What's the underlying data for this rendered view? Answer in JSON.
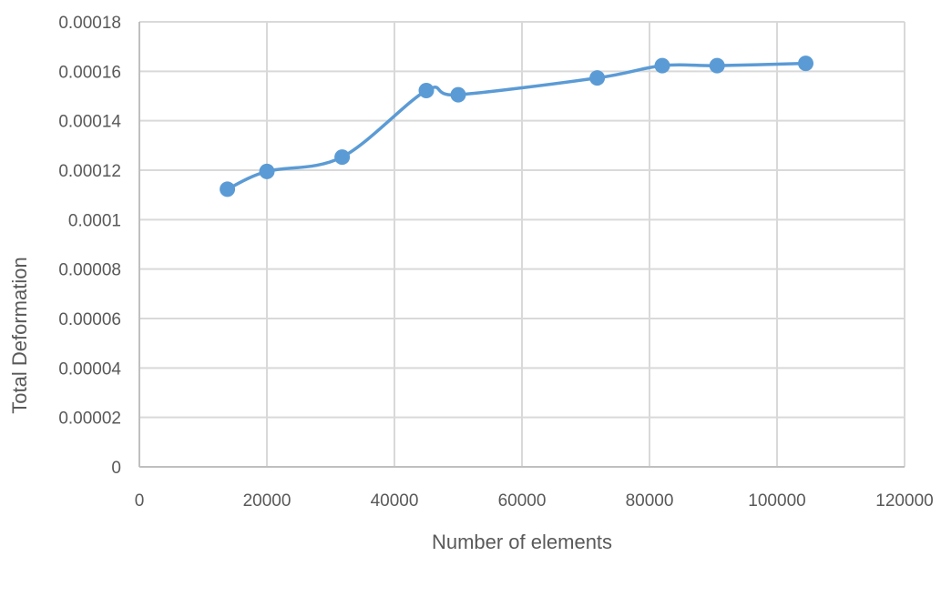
{
  "chart_data": {
    "type": "line",
    "title": "",
    "xlabel": "Number of elements",
    "ylabel": "Total Deformation",
    "xlim": [
      0,
      120000
    ],
    "ylim": [
      0,
      0.00018
    ],
    "x_ticks": [
      "0",
      "20000",
      "40000",
      "60000",
      "80000",
      "100000",
      "120000"
    ],
    "y_ticks": [
      "0",
      "0.00002",
      "0.00004",
      "0.00006",
      "0.00008",
      "0.0001",
      "0.00012",
      "0.00014",
      "0.00016",
      "0.00018"
    ],
    "grid": true,
    "legend": "none",
    "smooth": true,
    "series": [
      {
        "color": "#5b9bd5",
        "points": [
          {
            "x": 13800,
            "y": 0.0001123
          },
          {
            "x": 20000,
            "y": 0.0001195
          },
          {
            "x": 31800,
            "y": 0.0001253
          },
          {
            "x": 45000,
            "y": 0.0001522
          },
          {
            "x": 50000,
            "y": 0.0001505
          },
          {
            "x": 71800,
            "y": 0.0001573
          },
          {
            "x": 82000,
            "y": 0.0001623
          },
          {
            "x": 90600,
            "y": 0.0001623
          },
          {
            "x": 104500,
            "y": 0.0001632
          }
        ]
      }
    ]
  }
}
